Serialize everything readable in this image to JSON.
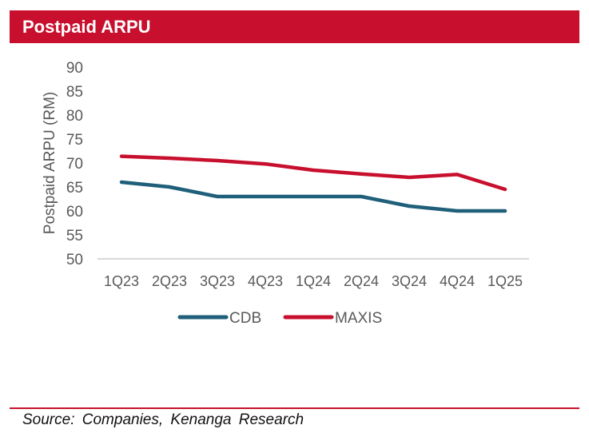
{
  "title": "Postpaid ARPU",
  "source": "Source: Companies, Kenanga Research",
  "colors": {
    "brand": "#c8102e",
    "cdb": "#1f5f7a",
    "maxis": "#c8102e",
    "axis": "#595959"
  },
  "chart_data": {
    "type": "line",
    "title": "Postpaid ARPU",
    "xlabel": "",
    "ylabel": "Postpaid ARPU (RM)",
    "ylim": [
      50,
      90
    ],
    "yticks": [
      "90",
      "85",
      "80",
      "75",
      "70",
      "65",
      "60",
      "55",
      "50"
    ],
    "categories": [
      "1Q23",
      "2Q23",
      "3Q23",
      "4Q23",
      "1Q24",
      "2Q24",
      "3Q24",
      "4Q24",
      "1Q25"
    ],
    "grid": false,
    "legend": "bottom",
    "series": [
      {
        "name": "CDB",
        "color": "#1f5f7a",
        "values": [
          66,
          65,
          63,
          63,
          63,
          63,
          61,
          60,
          60
        ]
      },
      {
        "name": "MAXIS",
        "color": "#c8102e",
        "values": [
          71.4,
          71,
          70.5,
          69.8,
          68.5,
          67.7,
          67,
          67.6,
          64.5
        ]
      }
    ]
  }
}
